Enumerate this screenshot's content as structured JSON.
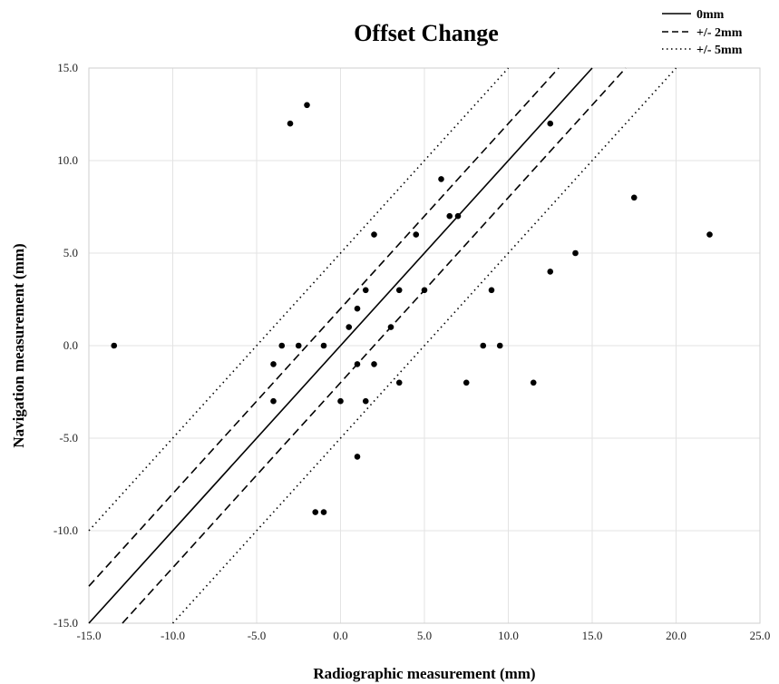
{
  "chart_data": {
    "type": "scatter",
    "title": "Offset Change",
    "xlabel": "Radiographic measurement (mm)",
    "ylabel": "Navigation measurement (mm)",
    "xlim": [
      -15,
      25
    ],
    "ylim": [
      -15,
      15
    ],
    "x_ticks": [
      -15,
      -10,
      -5,
      0,
      5,
      10,
      15,
      20,
      25
    ],
    "y_ticks": [
      -15,
      -10,
      -5,
      0,
      5,
      10,
      15
    ],
    "x_tick_labels": [
      "-15.0",
      "-10.0",
      "-5.0",
      "0.0",
      "5.0",
      "10.0",
      "15.0",
      "20.0",
      "25.0"
    ],
    "y_tick_labels": [
      "-15.0",
      "-10.0",
      "-5.0",
      "0.0",
      "5.0",
      "10.0",
      "15.0"
    ],
    "grid": true,
    "legend_position": "top-right",
    "reference_lines": [
      {
        "name": "0mm",
        "offset": 0,
        "style": "solid"
      },
      {
        "name": "+/- 2mm",
        "offset": 2,
        "style": "dashed"
      },
      {
        "name": "+/- 5mm",
        "offset": 5,
        "style": "dotted"
      }
    ],
    "points": [
      {
        "x": -13.5,
        "y": 0
      },
      {
        "x": -3.0,
        "y": 12
      },
      {
        "x": -2.0,
        "y": 13
      },
      {
        "x": -4.0,
        "y": -1
      },
      {
        "x": -4.0,
        "y": -3
      },
      {
        "x": -3.5,
        "y": 0
      },
      {
        "x": -2.5,
        "y": 0
      },
      {
        "x": -1.0,
        "y": 0
      },
      {
        "x": -1.5,
        "y": -9
      },
      {
        "x": -1.0,
        "y": -9
      },
      {
        "x": 0.0,
        "y": -3
      },
      {
        "x": 0.5,
        "y": 1
      },
      {
        "x": 1.0,
        "y": 2
      },
      {
        "x": 1.0,
        "y": -1
      },
      {
        "x": 1.0,
        "y": -6
      },
      {
        "x": 1.5,
        "y": 3
      },
      {
        "x": 1.5,
        "y": -3
      },
      {
        "x": 2.0,
        "y": 6
      },
      {
        "x": 2.0,
        "y": -1
      },
      {
        "x": 3.0,
        "y": 1
      },
      {
        "x": 3.5,
        "y": 3
      },
      {
        "x": 3.5,
        "y": -2
      },
      {
        "x": 4.5,
        "y": 6
      },
      {
        "x": 5.0,
        "y": 3
      },
      {
        "x": 6.0,
        "y": 9
      },
      {
        "x": 6.5,
        "y": 7
      },
      {
        "x": 7.0,
        "y": 7
      },
      {
        "x": 7.5,
        "y": -2
      },
      {
        "x": 8.5,
        "y": 0
      },
      {
        "x": 9.0,
        "y": 3
      },
      {
        "x": 9.5,
        "y": 0
      },
      {
        "x": 11.5,
        "y": -2
      },
      {
        "x": 12.5,
        "y": 12
      },
      {
        "x": 12.5,
        "y": 4
      },
      {
        "x": 14.0,
        "y": 5
      },
      {
        "x": 17.5,
        "y": 8
      },
      {
        "x": 22.0,
        "y": 6
      }
    ]
  }
}
